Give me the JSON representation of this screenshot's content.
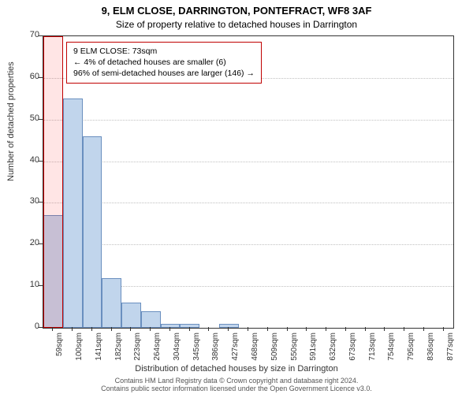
{
  "chart": {
    "type": "histogram",
    "title_line1": "9, ELM CLOSE, DARRINGTON, PONTEFRACT, WF8 3AF",
    "title_line2": "Size of property relative to detached houses in Darrington",
    "y_axis_label": "Number of detached properties",
    "x_axis_label": "Distribution of detached houses by size in Darrington",
    "ylim": [
      0,
      70
    ],
    "ytick_step": 10,
    "yticks": [
      0,
      10,
      20,
      30,
      40,
      50,
      60,
      70
    ],
    "x_categories": [
      "59sqm",
      "100sqm",
      "141sqm",
      "182sqm",
      "223sqm",
      "264sqm",
      "304sqm",
      "345sqm",
      "386sqm",
      "427sqm",
      "468sqm",
      "509sqm",
      "550sqm",
      "591sqm",
      "632sqm",
      "673sqm",
      "713sqm",
      "754sqm",
      "795sqm",
      "836sqm",
      "877sqm"
    ],
    "values": [
      27,
      55,
      46,
      12,
      6,
      4,
      1,
      1,
      0,
      1,
      0,
      0,
      0,
      0,
      0,
      0,
      0,
      0,
      0,
      0,
      0
    ],
    "bar_fill": "#c1d5ec",
    "bar_border": "#6a8fbf",
    "grid_color": "#c0c0c0",
    "background_color": "#ffffff",
    "axis_color": "#333333",
    "highlight_border": "#c00000",
    "highlight_fill": "rgba(255,0,0,0.10)",
    "highlight_index": 0,
    "title_fontsize": 13,
    "subtitle_fontsize": 12,
    "axis_label_fontsize": 11,
    "tick_fontsize": 11,
    "xtick_fontsize": 10,
    "bar_width_ratio": 1.0,
    "annotation": {
      "line1": "9 ELM CLOSE: 73sqm",
      "line2": "← 4% of detached houses are smaller (6)",
      "line3": "96% of semi-detached houses are larger (146) →",
      "border_color": "#c00000",
      "background": "#ffffff",
      "fontsize": 10.5
    },
    "footer_line1": "Contains HM Land Registry data © Crown copyright and database right 2024.",
    "footer_line2": "Contains public sector information licensed under the Open Government Licence v3.0.",
    "footer_fontsize": 9,
    "footer_color": "#555555"
  }
}
